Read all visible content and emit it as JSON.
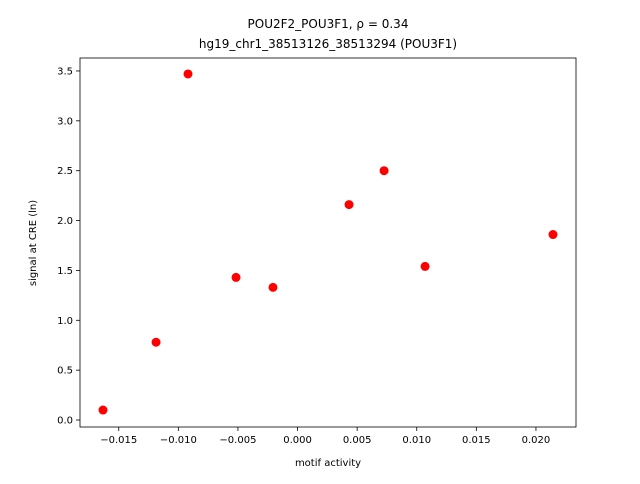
{
  "chart_data": {
    "type": "scatter",
    "title": "POU2F2_POU3F1, ρ = 0.34",
    "subtitle": "hg19_chr1_38513126_38513294 (POU3F1)",
    "x_label": "motif activity",
    "y_label": "signal at CRE (ln)",
    "color": "#ff0000",
    "x": [
      -0.01632,
      -0.01187,
      -0.00919,
      -0.00516,
      -0.00206,
      0.00432,
      0.00726,
      0.0107,
      0.02143
    ],
    "values": [
      0.1,
      0.78,
      3.47,
      1.43,
      1.33,
      2.16,
      2.5,
      1.54,
      1.86
    ],
    "xlim": [
      -0.01825,
      0.02336
    ],
    "ylim": [
      -0.07,
      3.63
    ],
    "xticks": [
      {
        "value": -0.015,
        "label": "−0.015"
      },
      {
        "value": -0.01,
        "label": "−0.010"
      },
      {
        "value": -0.005,
        "label": "−0.005"
      },
      {
        "value": 0,
        "label": "0.000"
      },
      {
        "value": 0.005,
        "label": "0.005"
      },
      {
        "value": 0.01,
        "label": "0.010"
      },
      {
        "value": 0.015,
        "label": "0.015"
      },
      {
        "value": 0.02,
        "label": "0.020"
      }
    ],
    "yticks": [
      {
        "value": 0,
        "label": "0.0"
      },
      0.5,
      {
        "value": 1,
        "label": "1.0"
      },
      1.5,
      {
        "value": 2,
        "label": "2.0"
      },
      2.5,
      {
        "value": 3,
        "label": "3.0"
      },
      3.5
    ]
  }
}
